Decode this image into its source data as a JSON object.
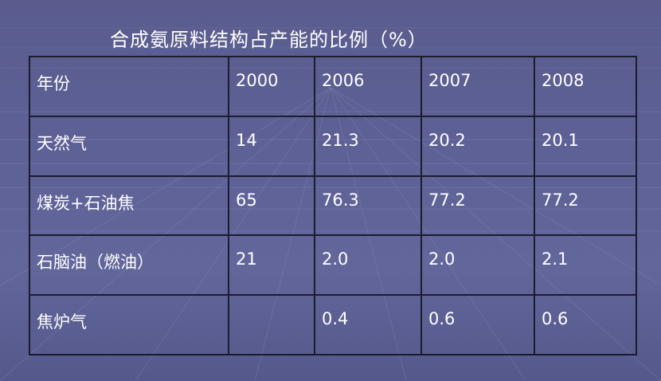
{
  "title": "合成氨原料结构占产能的比例（%）",
  "chart_data": {
    "type": "table",
    "title": "合成氨原料结构占产能的比例（%）",
    "columns": [
      "年份",
      "2000",
      "2006",
      "2007",
      "2008"
    ],
    "rows": [
      [
        "天然气",
        "14",
        "21.3",
        "20.2",
        "20.1"
      ],
      [
        "煤炭+石油焦",
        "65",
        "76.3",
        "77.2",
        "77.2"
      ],
      [
        "石脑油（燃油）",
        "21",
        "2.0",
        "2.0",
        "2.1"
      ],
      [
        "焦炉气",
        "",
        "0.4",
        "0.6",
        "0.6"
      ]
    ]
  },
  "colors": {
    "background": "#5e6196",
    "text": "#ffffff",
    "border": "#1b1c2c"
  }
}
